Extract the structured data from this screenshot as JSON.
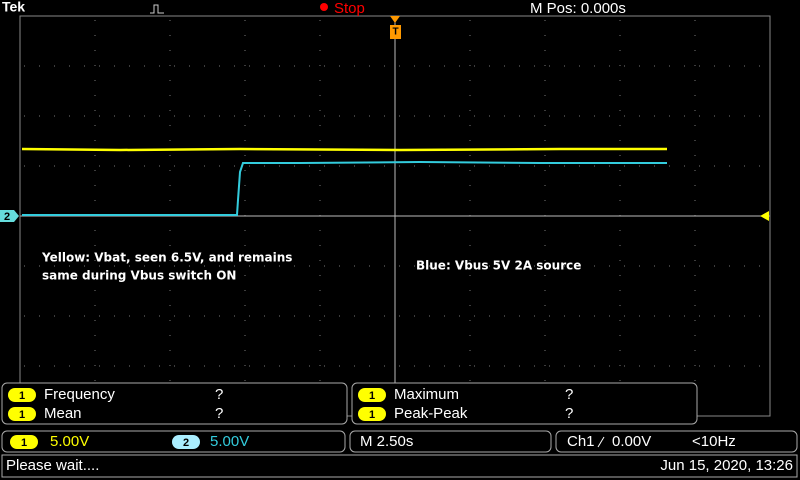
{
  "header": {
    "brand": "Tek",
    "status": "Stop",
    "position": "M Pos: 0.000s"
  },
  "trace_marker": "2",
  "annotations": [
    "Yellow: Vbat, seen 6.5V, and remains",
    "same during Vbus switch ON",
    "Blue: Vbus 5V 2A source"
  ],
  "measurements": [
    {
      "channel": "1",
      "name": "Frequency",
      "value": "?"
    },
    {
      "channel": "1",
      "name": "Mean",
      "value": "?"
    },
    {
      "channel": "1",
      "name": "Maximum",
      "value": "?"
    },
    {
      "channel": "1",
      "name": "Peak-Peak",
      "value": "?"
    }
  ],
  "channels": [
    {
      "id": "1",
      "scale": "5.00V"
    },
    {
      "id": "2",
      "scale": "5.00V"
    }
  ],
  "timebase": "M 2.50s",
  "trigger": {
    "source": "Ch1",
    "level": "0.00V",
    "rate": "<10Hz"
  },
  "status_bar": {
    "message": "Please wait....",
    "datetime": "Jun 15, 2020, 13:26"
  }
}
